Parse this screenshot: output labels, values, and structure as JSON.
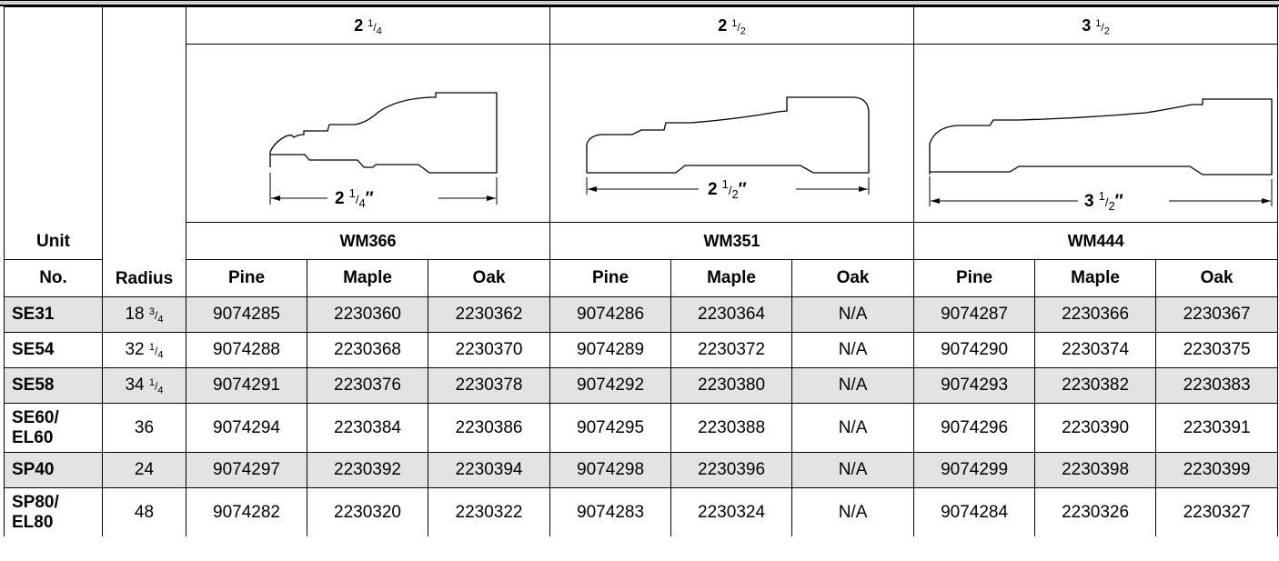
{
  "header": {
    "unit_label_line1": "Unit",
    "unit_label_line2": "No.",
    "radius_label": "Radius"
  },
  "profiles": [
    {
      "size_whole": "2",
      "size_num": "1",
      "size_den": "4",
      "model": "WM366",
      "dim_whole": "2",
      "dim_num": "1",
      "dim_den": "4",
      "dim_mark": "″"
    },
    {
      "size_whole": "2",
      "size_num": "1",
      "size_den": "2",
      "model": "WM351",
      "dim_whole": "2",
      "dim_num": "1",
      "dim_den": "2",
      "dim_mark": "″"
    },
    {
      "size_whole": "3",
      "size_num": "1",
      "size_den": "2",
      "model": "WM444",
      "dim_whole": "3",
      "dim_num": "1",
      "dim_den": "2",
      "dim_mark": "″"
    }
  ],
  "wood_types": [
    "Pine",
    "Maple",
    "Oak",
    "Pine",
    "Maple",
    "Oak",
    "Pine",
    "Maple",
    "Oak"
  ],
  "rows": [
    {
      "unit": "SE31",
      "radius_whole": "18",
      "radius_num": "3",
      "radius_den": "4",
      "cells": [
        "9074285",
        "2230360",
        "2230362",
        "9074286",
        "2230364",
        "N/A",
        "9074287",
        "2230366",
        "2230367"
      ]
    },
    {
      "unit": "SE54",
      "radius_whole": "32",
      "radius_num": "1",
      "radius_den": "4",
      "cells": [
        "9074288",
        "2230368",
        "2230370",
        "9074289",
        "2230372",
        "N/A",
        "9074290",
        "2230374",
        "2230375"
      ]
    },
    {
      "unit": "SE58",
      "radius_whole": "34",
      "radius_num": "1",
      "radius_den": "4",
      "cells": [
        "9074291",
        "2230376",
        "2230378",
        "9074292",
        "2230380",
        "N/A",
        "9074293",
        "2230382",
        "2230383"
      ]
    },
    {
      "unit_line1": "SE60/",
      "unit_line2": "EL60",
      "radius": "36",
      "cells": [
        "9074294",
        "2230384",
        "2230386",
        "9074295",
        "2230388",
        "N/A",
        "9074296",
        "2230390",
        "2230391"
      ]
    },
    {
      "unit": "SP40",
      "radius": "24",
      "cells": [
        "9074297",
        "2230392",
        "2230394",
        "9074298",
        "2230396",
        "N/A",
        "9074299",
        "2230398",
        "2230399"
      ]
    },
    {
      "unit_line1": "SP80/",
      "unit_line2": "EL80",
      "radius": "48",
      "cells": [
        "9074282",
        "2230320",
        "2230322",
        "9074283",
        "2230324",
        "N/A",
        "9074284",
        "2230326",
        "2230327"
      ]
    }
  ]
}
